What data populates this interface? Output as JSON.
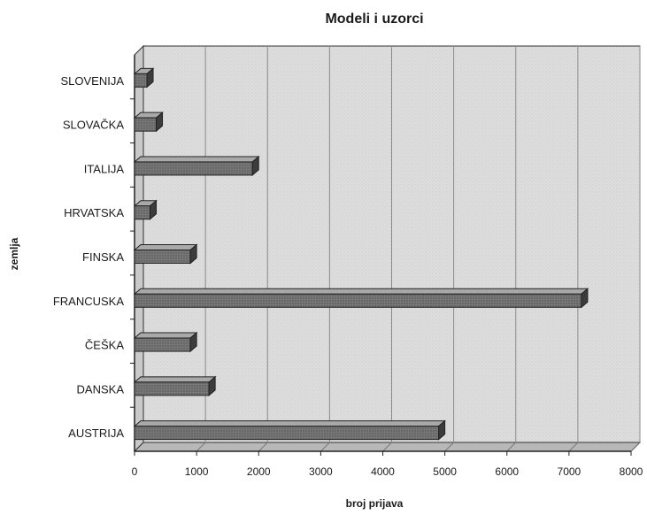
{
  "chart_data": {
    "type": "bar",
    "orientation": "horizontal",
    "title": "Modeli i uzorci",
    "xlabel": "broj prijava",
    "ylabel": "zemlja",
    "categories": [
      "SLOVENIJA",
      "SLOVAČKA",
      "ITALIJA",
      "HRVATSKA",
      "FINSKA",
      "FRANCUSKA",
      "ČEŠKA",
      "DANSKA",
      "AUSTRIJA"
    ],
    "values": [
      200,
      350,
      1900,
      250,
      900,
      7200,
      900,
      1200,
      4900
    ],
    "xlim": [
      0,
      8000
    ],
    "x_ticks": [
      0,
      1000,
      2000,
      3000,
      4000,
      5000,
      6000,
      7000,
      8000
    ],
    "grid": true,
    "style": "3d",
    "colors": {
      "bar": "#6f6f6f",
      "bar_top": "#a9a9a9",
      "bar_end": "#3c3c3c",
      "wall": "#d9d9d9",
      "floor": "#bdbdbd"
    }
  }
}
